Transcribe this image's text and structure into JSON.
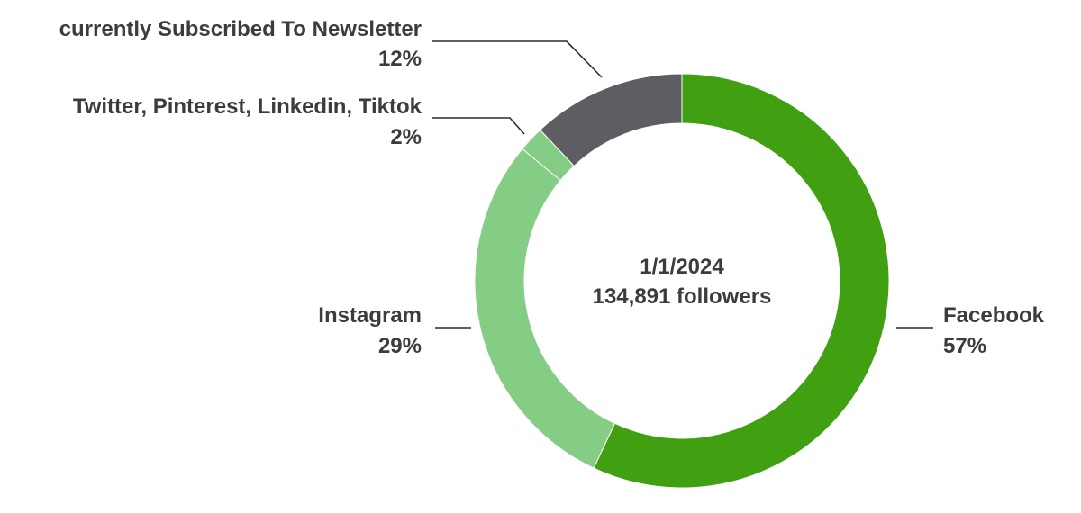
{
  "chart_data": {
    "type": "pie",
    "variant": "donut",
    "center_text": [
      "1/1/2024",
      "134,891 followers"
    ],
    "slices": [
      {
        "label": "Facebook",
        "value": 57,
        "value_label": "57%",
        "color": "#41a012"
      },
      {
        "label": "Instagram",
        "value": 29,
        "value_label": "29%",
        "color": "#85cc85"
      },
      {
        "label": "Twitter, Pinterest, Linkedin, Tiktok",
        "value": 2,
        "value_label": "2%",
        "color": "#85cc85"
      },
      {
        "label": "currently Subscribed To Newsletter",
        "value": 12,
        "value_label": "12%",
        "color": "#5d5e62"
      }
    ]
  }
}
